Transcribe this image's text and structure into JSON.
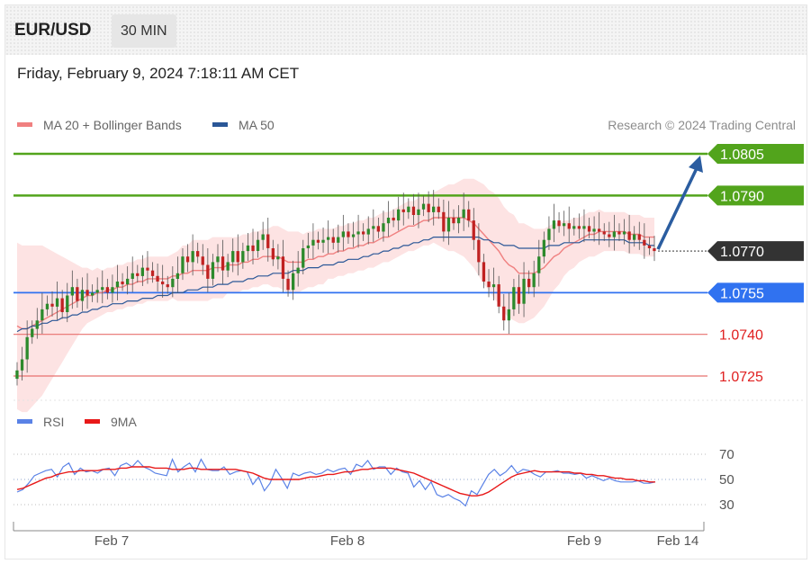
{
  "header": {
    "pair": "EUR/USD",
    "timeframe": "30 MIN"
  },
  "datetime": "Friday, February 9, 2024 7:18:11 AM CET",
  "credit": "Research © 2024 Trading Central",
  "colors": {
    "resistance": "#52a41c",
    "current": "#333333",
    "pivot": "#3072f0",
    "support": "#e8706e",
    "ma20": "#f08080",
    "ma50": "#2b5797",
    "bands": "#fde0e0",
    "rsi": "#5a82e6",
    "rsi_ma": "#e81818",
    "up_candle": "#2c8a2c",
    "down_candle": "#c02222",
    "arrow": "#2b5da0"
  },
  "chart_data": [
    {
      "type": "candlestick",
      "title": "EUR/USD",
      "timeframe": "30 MIN",
      "legend": [
        {
          "name": "MA 20 + Bollinger Bands",
          "color": "#f08080"
        },
        {
          "name": "MA 50",
          "color": "#2b5797"
        }
      ],
      "ylim": [
        1.0716,
        1.0818
      ],
      "x_ticks": [
        "Feb 7",
        "Feb 8",
        "Feb 9",
        "Feb 14"
      ],
      "current_price": 1.077,
      "levels": [
        {
          "label": "1.0805",
          "value": 1.0805,
          "kind": "resistance"
        },
        {
          "label": "1.0790",
          "value": 1.079,
          "kind": "resistance"
        },
        {
          "label": "1.0770",
          "value": 1.077,
          "kind": "current"
        },
        {
          "label": "1.0755",
          "value": 1.0755,
          "kind": "pivot"
        },
        {
          "label": "1.0740",
          "value": 1.074,
          "kind": "support"
        },
        {
          "label": "1.0725",
          "value": 1.0725,
          "kind": "support"
        }
      ],
      "target_arrow": {
        "from": 1.077,
        "to": 1.0805,
        "direction": "up"
      },
      "close_series": [
        1.0727,
        1.0731,
        1.0739,
        1.0742,
        1.0745,
        1.0749,
        1.0751,
        1.075,
        1.0753,
        1.0748,
        1.0754,
        1.0757,
        1.0752,
        1.0756,
        1.0754,
        1.0755,
        1.0756,
        1.0757,
        1.0755,
        1.0757,
        1.0759,
        1.0758,
        1.076,
        1.0762,
        1.0761,
        1.0764,
        1.0763,
        1.0761,
        1.0759,
        1.0758,
        1.0757,
        1.076,
        1.0762,
        1.0768,
        1.0766,
        1.077,
        1.0768,
        1.0765,
        1.076,
        1.0766,
        1.0768,
        1.0763,
        1.0766,
        1.077,
        1.0766,
        1.077,
        1.0772,
        1.077,
        1.0774,
        1.0776,
        1.0771,
        1.0767,
        1.0768,
        1.076,
        1.0756,
        1.0762,
        1.0764,
        1.0771,
        1.0772,
        1.0774,
        1.0773,
        1.0774,
        1.0775,
        1.0773,
        1.0775,
        1.0777,
        1.0775,
        1.0776,
        1.0777,
        1.0776,
        1.0778,
        1.0779,
        1.0777,
        1.078,
        1.0782,
        1.0781,
        1.0785,
        1.0784,
        1.0786,
        1.0783,
        1.0785,
        1.0787,
        1.0784,
        1.0786,
        1.0784,
        1.0777,
        1.0782,
        1.078,
        1.0782,
        1.0785,
        1.0781,
        1.0774,
        1.0766,
        1.0759,
        1.0757,
        1.0758,
        1.075,
        1.0745,
        1.0749,
        1.0757,
        1.0751,
        1.076,
        1.0757,
        1.0762,
        1.0768,
        1.0774,
        1.0778,
        1.0781,
        1.0779,
        1.078,
        1.0778,
        1.0779,
        1.0778,
        1.0779,
        1.0777,
        1.0778,
        1.0777,
        1.0776,
        1.0775,
        1.0777,
        1.0776,
        1.0777,
        1.0774,
        1.0776,
        1.0774,
        1.0772,
        1.0771,
        1.077
      ],
      "ma20_series": [
        1.0743,
        1.0742,
        1.0742,
        1.0743,
        1.0744,
        1.0745,
        1.0746,
        1.0747,
        1.0748,
        1.0749,
        1.075,
        1.0751,
        1.0752,
        1.0753,
        1.0754,
        1.0754,
        1.0755,
        1.0755,
        1.0756,
        1.0756,
        1.0757,
        1.0757,
        1.0758,
        1.0758,
        1.0759,
        1.0759,
        1.076,
        1.076,
        1.076,
        1.076,
        1.076,
        1.0761,
        1.0761,
        1.0762,
        1.0762,
        1.0763,
        1.0763,
        1.0763,
        1.0763,
        1.0764,
        1.0764,
        1.0764,
        1.0765,
        1.0765,
        1.0765,
        1.0766,
        1.0766,
        1.0767,
        1.0767,
        1.0768,
        1.0768,
        1.0768,
        1.0768,
        1.0767,
        1.0766,
        1.0766,
        1.0766,
        1.0766,
        1.0767,
        1.0767,
        1.0768,
        1.0768,
        1.0769,
        1.0769,
        1.077,
        1.077,
        1.0771,
        1.0771,
        1.0772,
        1.0772,
        1.0773,
        1.0773,
        1.0774,
        1.0775,
        1.0775,
        1.0776,
        1.0777,
        1.0778,
        1.0779,
        1.0779,
        1.078,
        1.0781,
        1.0781,
        1.0782,
        1.0782,
        1.0782,
        1.0782,
        1.0782,
        1.0782,
        1.0782,
        1.0781,
        1.078,
        1.0778,
        1.0776,
        1.0774,
        1.0772,
        1.077,
        1.0767,
        1.0765,
        1.0764,
        1.0762,
        1.0762,
        1.0762,
        1.0762,
        1.0763,
        1.0764,
        1.0766,
        1.0768,
        1.0769,
        1.0771,
        1.0772,
        1.0773,
        1.0774,
        1.0775,
        1.0776,
        1.0776,
        1.0777,
        1.0777,
        1.0777,
        1.0777,
        1.0777,
        1.0777,
        1.0776,
        1.0776,
        1.0776,
        1.0775,
        1.0775,
        1.0775
      ],
      "band_width_series": [
        0.003,
        0.003,
        0.003,
        0.0029,
        0.0028,
        0.0027,
        0.0025,
        0.0023,
        0.0021,
        0.0019,
        0.0017,
        0.0015,
        0.0013,
        0.0011,
        0.001,
        0.0009,
        0.0009,
        0.0008,
        0.0008,
        0.0008,
        0.0008,
        0.0008,
        0.0008,
        0.0008,
        0.0008,
        0.0008,
        0.0008,
        0.0008,
        0.0008,
        0.0008,
        0.0008,
        0.0008,
        0.0009,
        0.001,
        0.001,
        0.0011,
        0.0011,
        0.0011,
        0.0011,
        0.0011,
        0.0011,
        0.0011,
        0.001,
        0.001,
        0.001,
        0.001,
        0.001,
        0.001,
        0.001,
        0.001,
        0.001,
        0.0011,
        0.0011,
        0.0011,
        0.0011,
        0.0011,
        0.0011,
        0.001,
        0.001,
        0.001,
        0.001,
        0.001,
        0.0009,
        0.0009,
        0.0009,
        0.0009,
        0.0009,
        0.0009,
        0.0009,
        0.0009,
        0.0009,
        0.0009,
        0.0009,
        0.0009,
        0.0009,
        0.0009,
        0.0009,
        0.0009,
        0.0009,
        0.0009,
        0.0009,
        0.0009,
        0.0009,
        0.0009,
        0.001,
        0.0011,
        0.0012,
        0.0012,
        0.0013,
        0.0014,
        0.0015,
        0.0016,
        0.0017,
        0.0018,
        0.0018,
        0.0019,
        0.0019,
        0.0019,
        0.0019,
        0.0019,
        0.0018,
        0.0018,
        0.0017,
        0.0016,
        0.0015,
        0.0014,
        0.0013,
        0.0012,
        0.0011,
        0.001,
        0.0009,
        0.0009,
        0.0008,
        0.0008,
        0.0008,
        0.0008,
        0.0008,
        0.0007,
        0.0007,
        0.0007,
        0.0007,
        0.0007,
        0.0007,
        0.0007,
        0.0007,
        0.0007,
        0.0007,
        0.0007,
        0.0007
      ],
      "ma50_series": [
        1.0741,
        1.0742,
        1.0742,
        1.0743,
        1.0743,
        1.0744,
        1.0744,
        1.0745,
        1.0745,
        1.0746,
        1.0746,
        1.0747,
        1.0747,
        1.0748,
        1.0748,
        1.0749,
        1.0749,
        1.075,
        1.075,
        1.0751,
        1.0751,
        1.0751,
        1.0752,
        1.0752,
        1.0752,
        1.0753,
        1.0753,
        1.0753,
        1.0754,
        1.0754,
        1.0754,
        1.0755,
        1.0755,
        1.0755,
        1.0756,
        1.0756,
        1.0756,
        1.0757,
        1.0757,
        1.0757,
        1.0758,
        1.0758,
        1.0758,
        1.0759,
        1.0759,
        1.0759,
        1.076,
        1.076,
        1.0761,
        1.0761,
        1.0761,
        1.0762,
        1.0762,
        1.0762,
        1.0762,
        1.0763,
        1.0763,
        1.0763,
        1.0764,
        1.0764,
        1.0764,
        1.0765,
        1.0765,
        1.0765,
        1.0766,
        1.0766,
        1.0767,
        1.0767,
        1.0767,
        1.0768,
        1.0768,
        1.0769,
        1.0769,
        1.077,
        1.077,
        1.0771,
        1.0771,
        1.0772,
        1.0772,
        1.0773,
        1.0773,
        1.0774,
        1.0774,
        1.0775,
        1.0775,
        1.0775,
        1.0775,
        1.0775,
        1.0775,
        1.0775,
        1.0775,
        1.0775,
        1.0775,
        1.0774,
        1.0774,
        1.0773,
        1.0773,
        1.0772,
        1.0772,
        1.0772,
        1.0771,
        1.0771,
        1.0771,
        1.0771,
        1.0771,
        1.0771,
        1.0772,
        1.0772,
        1.0772,
        1.0773,
        1.0773,
        1.0773,
        1.0773,
        1.0774,
        1.0774,
        1.0774,
        1.0774,
        1.0774,
        1.0774,
        1.0774,
        1.0774,
        1.0774,
        1.0773,
        1.0773,
        1.0773,
        1.0773,
        1.0772,
        1.0772
      ]
    },
    {
      "type": "line",
      "title": "RSI",
      "legend": [
        {
          "name": "RSI",
          "color": "#5a82e6"
        },
        {
          "name": "9MA",
          "color": "#e81818"
        }
      ],
      "ylim": [
        22,
        78
      ],
      "y_ticks": [
        70,
        50,
        30
      ],
      "series": [
        {
          "name": "RSI",
          "values": [
            40,
            42,
            47,
            53,
            55,
            57,
            58,
            52,
            60,
            63,
            54,
            59,
            56,
            57,
            55,
            58,
            59,
            53,
            61,
            63,
            60,
            65,
            60,
            58,
            55,
            54,
            53,
            66,
            56,
            60,
            63,
            56,
            66,
            58,
            57,
            57,
            60,
            54,
            56,
            57,
            56,
            46,
            52,
            41,
            47,
            58,
            51,
            43,
            55,
            53,
            55,
            56,
            54,
            55,
            58,
            56,
            58,
            59,
            54,
            62,
            60,
            65,
            58,
            60,
            60,
            54,
            59,
            56,
            55,
            44,
            49,
            42,
            48,
            38,
            36,
            38,
            35,
            33,
            29,
            41,
            38,
            46,
            54,
            58,
            53,
            56,
            61,
            55,
            58,
            57,
            54,
            52,
            56,
            56,
            57,
            55,
            55,
            54,
            55,
            51,
            53,
            51,
            49,
            51,
            49,
            48,
            48,
            48,
            49,
            47,
            47,
            48
          ]
        },
        {
          "name": "9MA",
          "values": [
            42,
            43,
            45,
            47,
            49,
            51,
            52,
            54,
            55,
            56,
            56,
            57,
            57,
            57,
            57,
            58,
            58,
            58,
            59,
            59,
            60,
            60,
            60,
            60,
            59,
            59,
            59,
            58,
            58,
            58,
            59,
            59,
            58,
            58,
            58,
            58,
            58,
            58,
            58,
            57,
            56,
            55,
            53,
            51,
            50,
            50,
            50,
            50,
            50,
            50,
            51,
            52,
            52,
            53,
            54,
            54,
            55,
            56,
            56,
            57,
            58,
            58,
            59,
            59,
            59,
            59,
            58,
            57,
            56,
            55,
            53,
            51,
            49,
            47,
            45,
            43,
            41,
            39,
            38,
            37,
            37,
            38,
            40,
            43,
            46,
            49,
            52,
            54,
            55,
            56,
            57,
            56,
            56,
            56,
            56,
            56,
            56,
            55,
            55,
            54,
            54,
            53,
            53,
            52,
            51,
            51,
            50,
            50,
            49,
            49,
            48,
            48
          ]
        }
      ],
      "x_ticks": [
        "Feb 7",
        "Feb 8",
        "Feb 9",
        "Feb 14"
      ]
    }
  ]
}
